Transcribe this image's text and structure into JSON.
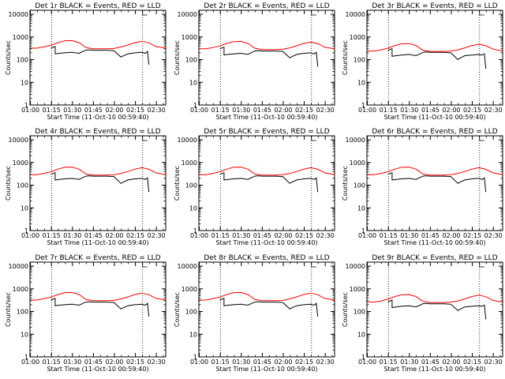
{
  "colors": {
    "events": "#000000",
    "lld": "#ff0000",
    "axis": "#000000",
    "background": "#ffffff"
  },
  "shared": {
    "ylabel": "Counts/sec",
    "xlabel": "Start Time (11-Oct-10 00:59:40)",
    "x_ticks": [
      "01:00",
      "01:15",
      "01:30",
      "01:45",
      "02:00",
      "02:15",
      "02:30"
    ],
    "y_ticks": [
      "1",
      "10",
      "100",
      "1000",
      "10000"
    ],
    "xlim_minutes": [
      0,
      97
    ],
    "ylim": [
      1,
      15000
    ],
    "dotted_lines_minutes": [
      15.5,
      80.5
    ]
  },
  "chart_data": [
    {
      "type": "line",
      "title": "Det 1r BLACK = Events, RED = LLD",
      "series": [
        {
          "name": "Events",
          "color": "#000000",
          "x": [
            15,
            16,
            17,
            18,
            18,
            21,
            25,
            30,
            35,
            38,
            40,
            42,
            45,
            50,
            55,
            60,
            65,
            66,
            67,
            68,
            70,
            75,
            80,
            82,
            83,
            84,
            85
          ],
          "y": [
            320,
            340,
            360,
            380,
            180,
            190,
            200,
            210,
            190,
            230,
            260,
            270,
            260,
            260,
            260,
            250,
            130,
            140,
            150,
            160,
            180,
            200,
            210,
            190,
            200,
            230,
            60
          ]
        },
        {
          "name": "LLD",
          "color": "#ff0000",
          "x": [
            0,
            5,
            10,
            15,
            20,
            25,
            30,
            35,
            40,
            45,
            50,
            55,
            60,
            65,
            70,
            75,
            80,
            85,
            90,
            97
          ],
          "y": [
            320,
            320,
            370,
            430,
            560,
            680,
            690,
            560,
            340,
            300,
            300,
            300,
            310,
            360,
            440,
            560,
            650,
            550,
            380,
            320
          ]
        }
      ]
    },
    {
      "type": "line",
      "title": "Det 2r BLACK = Events, RED = LLD",
      "series": [
        {
          "name": "Events",
          "color": "#000000",
          "x": [
            15,
            16,
            17,
            18,
            18,
            21,
            25,
            30,
            35,
            38,
            40,
            42,
            45,
            50,
            55,
            60,
            65,
            66,
            67,
            68,
            70,
            75,
            80,
            82,
            83,
            84,
            85
          ],
          "y": [
            300,
            320,
            340,
            350,
            160,
            170,
            180,
            190,
            170,
            210,
            240,
            250,
            240,
            240,
            240,
            230,
            120,
            130,
            140,
            150,
            170,
            190,
            200,
            180,
            190,
            210,
            50
          ]
        },
        {
          "name": "LLD",
          "color": "#ff0000",
          "x": [
            0,
            5,
            10,
            15,
            20,
            25,
            30,
            35,
            40,
            45,
            50,
            55,
            60,
            65,
            70,
            75,
            80,
            85,
            90,
            97
          ],
          "y": [
            300,
            300,
            340,
            400,
            520,
            630,
            640,
            520,
            320,
            280,
            280,
            280,
            290,
            330,
            410,
            520,
            600,
            510,
            350,
            300
          ]
        }
      ]
    },
    {
      "type": "line",
      "title": "Det 3r BLACK = Events, RED = LLD",
      "series": [
        {
          "name": "Events",
          "color": "#000000",
          "x": [
            15,
            16,
            17,
            18,
            18,
            21,
            25,
            30,
            35,
            38,
            40,
            42,
            45,
            50,
            55,
            60,
            65,
            66,
            67,
            68,
            70,
            75,
            80,
            82,
            83,
            84,
            85
          ],
          "y": [
            250,
            270,
            290,
            300,
            140,
            150,
            160,
            170,
            150,
            180,
            210,
            220,
            210,
            210,
            210,
            200,
            100,
            110,
            120,
            130,
            150,
            160,
            170,
            160,
            170,
            180,
            40
          ]
        },
        {
          "name": "LLD",
          "color": "#ff0000",
          "x": [
            0,
            5,
            10,
            15,
            20,
            25,
            30,
            35,
            40,
            45,
            50,
            55,
            60,
            65,
            70,
            75,
            80,
            85,
            90,
            97
          ],
          "y": [
            240,
            240,
            270,
            320,
            420,
            500,
            510,
            420,
            260,
            230,
            230,
            230,
            240,
            270,
            330,
            420,
            480,
            410,
            290,
            240
          ]
        }
      ]
    },
    {
      "type": "line",
      "title": "Det 4r BLACK = Events, RED = LLD",
      "series": [
        {
          "name": "Events",
          "color": "#000000",
          "x": [
            15,
            16,
            17,
            18,
            18,
            21,
            25,
            30,
            35,
            38,
            40,
            42,
            45,
            50,
            55,
            60,
            65,
            66,
            67,
            68,
            70,
            75,
            80,
            82,
            83,
            84,
            85
          ],
          "y": [
            300,
            320,
            340,
            350,
            170,
            180,
            190,
            200,
            180,
            220,
            250,
            260,
            250,
            250,
            250,
            240,
            120,
            130,
            140,
            150,
            170,
            190,
            200,
            180,
            190,
            210,
            50
          ]
        },
        {
          "name": "LLD",
          "color": "#ff0000",
          "x": [
            0,
            5,
            10,
            15,
            20,
            25,
            30,
            35,
            40,
            45,
            50,
            55,
            60,
            65,
            70,
            75,
            80,
            85,
            90,
            97
          ],
          "y": [
            290,
            290,
            330,
            390,
            510,
            620,
            630,
            510,
            310,
            280,
            280,
            280,
            290,
            330,
            400,
            510,
            590,
            500,
            350,
            290
          ]
        }
      ]
    },
    {
      "type": "line",
      "title": "Det 5r BLACK = Events, RED = LLD",
      "series": [
        {
          "name": "Events",
          "color": "#000000",
          "x": [
            15,
            16,
            17,
            18,
            18,
            21,
            25,
            30,
            35,
            38,
            40,
            42,
            45,
            50,
            55,
            60,
            65,
            66,
            67,
            68,
            70,
            75,
            80,
            82,
            83,
            84,
            85
          ],
          "y": [
            300,
            320,
            340,
            350,
            170,
            180,
            190,
            200,
            180,
            220,
            250,
            260,
            250,
            250,
            250,
            240,
            120,
            130,
            140,
            150,
            170,
            190,
            200,
            180,
            190,
            210,
            50
          ]
        },
        {
          "name": "LLD",
          "color": "#ff0000",
          "x": [
            0,
            5,
            10,
            15,
            20,
            25,
            30,
            35,
            40,
            45,
            50,
            55,
            60,
            65,
            70,
            75,
            80,
            85,
            90,
            97
          ],
          "y": [
            290,
            290,
            330,
            390,
            510,
            620,
            630,
            510,
            310,
            280,
            280,
            280,
            290,
            330,
            400,
            510,
            590,
            500,
            350,
            290
          ]
        }
      ]
    },
    {
      "type": "line",
      "title": "Det 6r BLACK = Events, RED = LLD",
      "series": [
        {
          "name": "Events",
          "color": "#000000",
          "x": [
            15,
            16,
            17,
            18,
            18,
            21,
            25,
            30,
            35,
            38,
            40,
            42,
            45,
            50,
            55,
            60,
            65,
            66,
            67,
            68,
            70,
            75,
            80,
            82,
            83,
            84,
            85
          ],
          "y": [
            300,
            320,
            340,
            350,
            170,
            180,
            190,
            200,
            180,
            220,
            250,
            260,
            250,
            250,
            250,
            240,
            120,
            130,
            140,
            150,
            170,
            190,
            200,
            180,
            190,
            210,
            50
          ]
        },
        {
          "name": "LLD",
          "color": "#ff0000",
          "x": [
            0,
            5,
            10,
            15,
            20,
            25,
            30,
            35,
            40,
            45,
            50,
            55,
            60,
            65,
            70,
            75,
            80,
            85,
            90,
            97
          ],
          "y": [
            290,
            290,
            330,
            390,
            510,
            620,
            630,
            510,
            310,
            280,
            280,
            280,
            290,
            330,
            400,
            510,
            590,
            500,
            350,
            290
          ]
        }
      ]
    },
    {
      "type": "line",
      "title": "Det 7r BLACK = Events, RED = LLD",
      "series": [
        {
          "name": "Events",
          "color": "#000000",
          "x": [
            15,
            16,
            17,
            18,
            18,
            21,
            25,
            30,
            35,
            38,
            40,
            42,
            45,
            50,
            55,
            60,
            65,
            66,
            67,
            68,
            70,
            75,
            80,
            82,
            83,
            84,
            85
          ],
          "y": [
            320,
            340,
            360,
            380,
            180,
            190,
            200,
            210,
            190,
            230,
            260,
            270,
            260,
            260,
            260,
            250,
            130,
            140,
            150,
            160,
            180,
            200,
            210,
            190,
            200,
            230,
            60
          ]
        },
        {
          "name": "LLD",
          "color": "#ff0000",
          "x": [
            0,
            5,
            10,
            15,
            20,
            25,
            30,
            35,
            40,
            45,
            50,
            55,
            60,
            65,
            70,
            75,
            80,
            85,
            90,
            97
          ],
          "y": [
            320,
            320,
            370,
            430,
            560,
            680,
            690,
            560,
            340,
            300,
            300,
            300,
            310,
            360,
            440,
            560,
            650,
            550,
            380,
            320
          ]
        }
      ]
    },
    {
      "type": "line",
      "title": "Det 8r BLACK = Events, RED = LLD",
      "series": [
        {
          "name": "Events",
          "color": "#000000",
          "x": [
            15,
            16,
            17,
            18,
            18,
            21,
            25,
            30,
            35,
            38,
            40,
            42,
            45,
            50,
            55,
            60,
            65,
            66,
            67,
            68,
            70,
            75,
            80,
            82,
            83,
            84,
            85
          ],
          "y": [
            320,
            340,
            360,
            380,
            180,
            190,
            200,
            210,
            190,
            230,
            260,
            270,
            260,
            260,
            260,
            250,
            130,
            140,
            150,
            160,
            180,
            200,
            210,
            190,
            200,
            230,
            60
          ]
        },
        {
          "name": "LLD",
          "color": "#ff0000",
          "x": [
            0,
            5,
            10,
            15,
            20,
            25,
            30,
            35,
            40,
            45,
            50,
            55,
            60,
            65,
            70,
            75,
            80,
            85,
            90,
            97
          ],
          "y": [
            320,
            320,
            370,
            430,
            560,
            680,
            690,
            560,
            340,
            300,
            300,
            300,
            310,
            360,
            440,
            560,
            650,
            550,
            380,
            320
          ]
        }
      ]
    },
    {
      "type": "line",
      "title": "Det 9r BLACK = Events, RED = LLD",
      "series": [
        {
          "name": "Events",
          "color": "#000000",
          "x": [
            15,
            16,
            17,
            18,
            18,
            21,
            25,
            30,
            35,
            38,
            40,
            42,
            45,
            50,
            55,
            60,
            65,
            66,
            67,
            68,
            70,
            75,
            80,
            82,
            83,
            84,
            85
          ],
          "y": [
            260,
            280,
            300,
            320,
            150,
            160,
            170,
            180,
            160,
            190,
            220,
            230,
            220,
            220,
            220,
            210,
            110,
            120,
            130,
            140,
            160,
            170,
            180,
            170,
            180,
            190,
            45
          ]
        },
        {
          "name": "LLD",
          "color": "#ff0000",
          "x": [
            0,
            5,
            10,
            15,
            20,
            25,
            30,
            35,
            40,
            45,
            50,
            55,
            60,
            65,
            70,
            75,
            80,
            85,
            90,
            97
          ],
          "y": [
            260,
            260,
            290,
            350,
            460,
            550,
            560,
            460,
            280,
            250,
            250,
            250,
            260,
            290,
            360,
            460,
            530,
            450,
            310,
            260
          ]
        }
      ]
    }
  ]
}
